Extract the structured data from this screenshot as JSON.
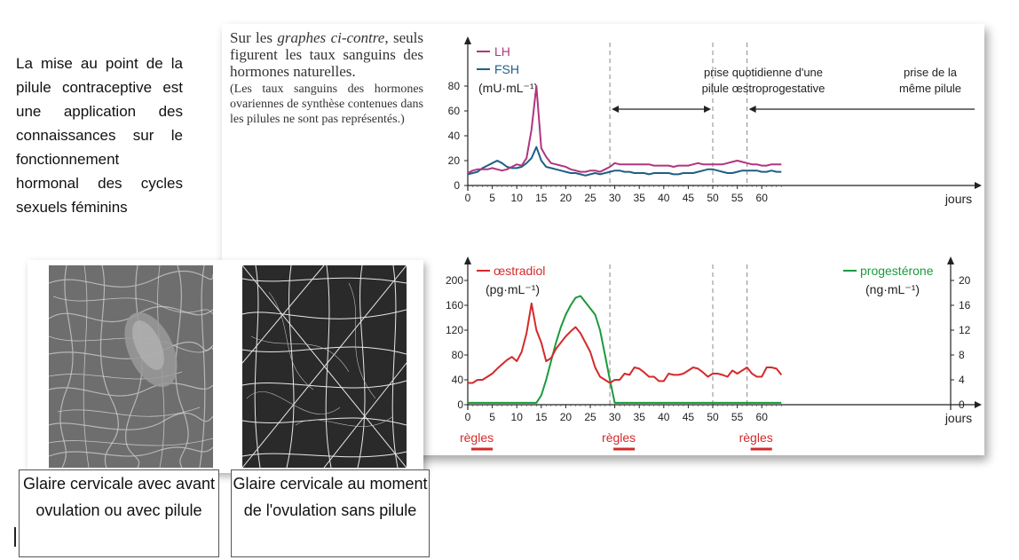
{
  "intro_text": "La mise au point de la pilule contraceptive est une application des connaissances sur le fonctionnement hormonal des cycles sexuels féminins",
  "note": {
    "line1_pre": "Sur les ",
    "line1_italic": "graphes ci-contre",
    "line1_post": ", seuls figurent les taux sanguins des hormones naturelles.",
    "line2": "(Les taux sanguins des hormones ovariennes de synthèse contenues dans les pilules ne sont pas représentés.)"
  },
  "captions": {
    "left": "Glaire cervicale avec avant ovulation ou avec pilule",
    "right": "Glaire cervicale au moment de l'ovulation sans pilule"
  },
  "colors": {
    "lh": "#b0357f",
    "fsh": "#1f5f86",
    "oestradiol": "#d42a2a",
    "progesterone": "#1a9a3c",
    "regles": "#d42a2a"
  },
  "annotations": {
    "pill_period": "prise quotidienne d'une pilule œstroprogestative",
    "pill_period_2": "prise de la même pilule",
    "regles": "règles"
  },
  "chart_data": [
    {
      "type": "line",
      "xlabel": "jours",
      "ylabel": "(mU·mL⁻¹)",
      "xlim": [
        0,
        64
      ],
      "ylim": [
        0,
        80
      ],
      "xticks": [
        "0",
        "5",
        "10",
        "15",
        "20",
        "25",
        "30",
        "35",
        "40",
        "45",
        "50",
        "55",
        "60"
      ],
      "yticks": [
        "0",
        "20",
        "40",
        "60",
        "80"
      ],
      "series": [
        {
          "name": "LH",
          "x": [
            0,
            1,
            2,
            3,
            4,
            5,
            6,
            7,
            8,
            9,
            10,
            11,
            12,
            13,
            14,
            15,
            16,
            17,
            18,
            19,
            20,
            21,
            22,
            23,
            24,
            25,
            26,
            27,
            28,
            29,
            30,
            31,
            32,
            33,
            34,
            35,
            36,
            37,
            38,
            39,
            40,
            41,
            42,
            43,
            44,
            45,
            46,
            47,
            48,
            49,
            50,
            51,
            52,
            53,
            54,
            55,
            56,
            57,
            58,
            59,
            60,
            61,
            62,
            63,
            64
          ],
          "y": [
            10,
            12,
            13,
            13,
            13,
            14,
            13,
            12,
            13,
            15,
            17,
            16,
            22,
            45,
            80,
            30,
            23,
            18,
            17,
            16,
            15,
            13,
            12,
            11,
            11,
            12,
            12,
            11,
            13,
            15,
            18,
            17,
            17,
            17,
            17,
            17,
            17,
            17,
            16,
            16,
            16,
            16,
            15,
            16,
            16,
            16,
            17,
            18,
            17,
            17,
            17,
            17,
            17,
            18,
            19,
            20,
            19,
            18,
            17,
            17,
            16,
            16,
            17,
            17,
            17
          ]
        },
        {
          "name": "FSH",
          "x": [
            0,
            1,
            2,
            3,
            4,
            5,
            6,
            7,
            8,
            9,
            10,
            11,
            12,
            13,
            14,
            15,
            16,
            17,
            18,
            19,
            20,
            21,
            22,
            23,
            24,
            25,
            26,
            27,
            28,
            29,
            30,
            31,
            32,
            33,
            34,
            35,
            36,
            37,
            38,
            39,
            40,
            41,
            42,
            43,
            44,
            45,
            46,
            47,
            48,
            49,
            50,
            51,
            52,
            53,
            54,
            55,
            56,
            57,
            58,
            59,
            60,
            61,
            62,
            63,
            64
          ],
          "y": [
            9,
            10,
            11,
            14,
            16,
            18,
            20,
            18,
            15,
            14,
            14,
            15,
            18,
            22,
            31,
            20,
            15,
            14,
            13,
            12,
            11,
            10,
            10,
            9,
            8,
            9,
            10,
            9,
            10,
            11,
            12,
            12,
            11,
            11,
            10,
            10,
            10,
            9,
            10,
            10,
            10,
            10,
            9,
            9,
            10,
            10,
            10,
            11,
            12,
            13,
            13,
            12,
            11,
            10,
            10,
            11,
            12,
            12,
            12,
            12,
            11,
            11,
            12,
            11,
            11
          ]
        }
      ]
    },
    {
      "type": "line",
      "xlabel": "jours",
      "ylabel_left": "(pg·mL⁻¹)",
      "ylabel_right": "(ng·mL⁻¹)",
      "xlim": [
        0,
        64
      ],
      "ylim_left": [
        0,
        200
      ],
      "ylim_right": [
        0,
        20
      ],
      "xticks": [
        "0",
        "5",
        "10",
        "15",
        "20",
        "25",
        "30",
        "35",
        "40",
        "45",
        "50",
        "55",
        "60"
      ],
      "yticks_left": [
        "0",
        "40",
        "80",
        "120",
        "160",
        "200"
      ],
      "yticks_right": [
        "0",
        "4",
        "8",
        "12",
        "16",
        "20"
      ],
      "series": [
        {
          "name": "œstradiol",
          "axis": "left",
          "x": [
            0,
            1,
            2,
            3,
            4,
            5,
            6,
            7,
            8,
            9,
            10,
            11,
            12,
            13,
            14,
            15,
            16,
            17,
            18,
            19,
            20,
            21,
            22,
            23,
            24,
            25,
            26,
            27,
            28,
            29,
            30,
            31,
            32,
            33,
            34,
            35,
            36,
            37,
            38,
            39,
            40,
            41,
            42,
            43,
            44,
            45,
            46,
            47,
            48,
            49,
            50,
            51,
            52,
            53,
            54,
            55,
            56,
            57,
            58,
            59,
            60,
            61,
            62,
            63,
            64
          ],
          "y": [
            35,
            35,
            40,
            40,
            45,
            50,
            58,
            65,
            72,
            77,
            70,
            85,
            115,
            163,
            120,
            100,
            70,
            75,
            90,
            100,
            110,
            118,
            125,
            115,
            100,
            85,
            60,
            45,
            40,
            35,
            40,
            40,
            50,
            48,
            60,
            58,
            52,
            45,
            45,
            38,
            38,
            50,
            48,
            48,
            50,
            55,
            60,
            58,
            52,
            45,
            50,
            50,
            48,
            45,
            55,
            50,
            55,
            60,
            50,
            45,
            45,
            60,
            60,
            58,
            48
          ]
        },
        {
          "name": "progestérone",
          "axis": "right",
          "x": [
            0,
            1,
            2,
            3,
            4,
            5,
            6,
            7,
            8,
            9,
            10,
            11,
            12,
            13,
            14,
            15,
            16,
            17,
            18,
            19,
            20,
            21,
            22,
            23,
            24,
            25,
            26,
            27,
            28,
            29,
            30,
            31,
            32,
            33,
            34,
            35,
            36,
            37,
            38,
            39,
            40,
            41,
            42,
            43,
            44,
            45,
            46,
            47,
            48,
            49,
            50,
            51,
            52,
            53,
            54,
            55,
            56,
            57,
            58,
            59,
            60,
            61,
            62,
            63,
            64
          ],
          "y": [
            0.3,
            0.3,
            0.3,
            0.3,
            0.3,
            0.3,
            0.3,
            0.3,
            0.3,
            0.3,
            0.3,
            0.3,
            0.3,
            0.3,
            0.3,
            1.5,
            4,
            7,
            10,
            12.5,
            14.5,
            16,
            17.2,
            17.5,
            16.5,
            15.5,
            14.5,
            12,
            8,
            4,
            0.3,
            0.3,
            0.3,
            0.3,
            0.3,
            0.3,
            0.3,
            0.3,
            0.3,
            0.3,
            0.3,
            0.3,
            0.3,
            0.3,
            0.3,
            0.3,
            0.3,
            0.3,
            0.3,
            0.3,
            0.3,
            0.3,
            0.3,
            0.3,
            0.3,
            0.3,
            0.3,
            0.3,
            0.3,
            0.3,
            0.3,
            0.3,
            0.3,
            0.3,
            0.3
          ]
        }
      ],
      "regles_periods": [
        [
          0,
          4
        ],
        [
          29,
          33
        ],
        [
          57,
          61
        ]
      ]
    }
  ]
}
